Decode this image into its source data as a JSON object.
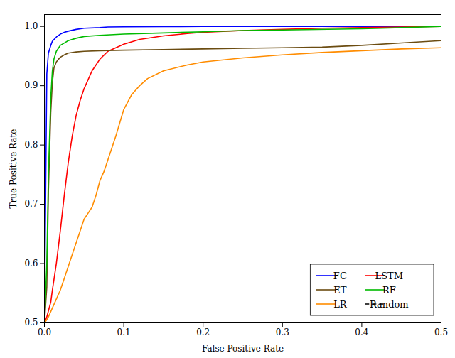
{
  "chart_data": {
    "type": "line",
    "xlabel": "False Positive Rate",
    "ylabel": "True Positive Rate",
    "xlim": [
      0.0,
      0.5
    ],
    "ylim": [
      0.5,
      1.02
    ],
    "xticks": [
      {
        "value": 0.0,
        "label": "0.0"
      },
      0.1,
      0.2,
      0.3,
      0.4,
      0.5
    ],
    "yticks": [
      0.5,
      0.6,
      0.7,
      0.8,
      0.9,
      {
        "value": 1.0,
        "label": "1.0"
      }
    ],
    "grid": false,
    "legend": "lower right",
    "series": [
      {
        "name": "FC",
        "color": "#0000ff",
        "line_style": "solid",
        "x": [
          0.0,
          0.003,
          0.005,
          0.008,
          0.01,
          0.015,
          0.02,
          0.025,
          0.03,
          0.04,
          0.05,
          0.07,
          0.08,
          0.1,
          0.15,
          0.2,
          0.5
        ],
        "values": [
          0.5,
          0.92,
          0.955,
          0.968,
          0.975,
          0.982,
          0.987,
          0.99,
          0.992,
          0.995,
          0.997,
          0.998,
          0.999,
          0.9993,
          0.9996,
          1.0,
          1.0
        ]
      },
      {
        "name": "LSTM",
        "color": "#ff0000",
        "line_style": "solid",
        "x": [
          0.0,
          0.003,
          0.005,
          0.008,
          0.01,
          0.015,
          0.02,
          0.025,
          0.03,
          0.035,
          0.04,
          0.045,
          0.05,
          0.06,
          0.07,
          0.08,
          0.1,
          0.12,
          0.15,
          0.18,
          0.2,
          0.25,
          0.3,
          0.35,
          0.4,
          0.45,
          0.5
        ],
        "values": [
          0.5,
          0.51,
          0.52,
          0.535,
          0.555,
          0.6,
          0.655,
          0.715,
          0.77,
          0.815,
          0.85,
          0.875,
          0.895,
          0.925,
          0.945,
          0.958,
          0.97,
          0.978,
          0.984,
          0.988,
          0.99,
          0.993,
          0.995,
          0.997,
          0.998,
          0.999,
          1.0
        ]
      },
      {
        "name": "ET",
        "color": "#6b4c11",
        "line_style": "solid",
        "x": [
          0.0,
          0.003,
          0.005,
          0.008,
          0.01,
          0.012,
          0.015,
          0.018,
          0.02,
          0.025,
          0.03,
          0.04,
          0.05,
          0.07,
          0.1,
          0.15,
          0.2,
          0.25,
          0.3,
          0.35,
          0.4,
          0.45,
          0.5
        ],
        "values": [
          0.5,
          0.56,
          0.72,
          0.855,
          0.905,
          0.93,
          0.94,
          0.945,
          0.948,
          0.952,
          0.955,
          0.957,
          0.958,
          0.959,
          0.96,
          0.961,
          0.962,
          0.963,
          0.964,
          0.965,
          0.968,
          0.972,
          0.976
        ]
      },
      {
        "name": "RF",
        "color": "#00bb00",
        "line_style": "solid",
        "x": [
          0.0,
          0.003,
          0.005,
          0.008,
          0.01,
          0.012,
          0.015,
          0.018,
          0.02,
          0.025,
          0.03,
          0.04,
          0.05,
          0.07,
          0.1,
          0.15,
          0.2,
          0.25,
          0.3,
          0.4,
          0.45,
          0.5
        ],
        "values": [
          0.5,
          0.6,
          0.75,
          0.88,
          0.925,
          0.945,
          0.958,
          0.964,
          0.968,
          0.972,
          0.976,
          0.98,
          0.983,
          0.985,
          0.987,
          0.989,
          0.991,
          0.993,
          0.994,
          0.996,
          0.998,
          1.0
        ]
      },
      {
        "name": "LR",
        "color": "#ff8c00",
        "line_style": "solid",
        "x": [
          0.0,
          0.003,
          0.005,
          0.01,
          0.015,
          0.02,
          0.025,
          0.03,
          0.035,
          0.04,
          0.045,
          0.05,
          0.055,
          0.06,
          0.065,
          0.07,
          0.075,
          0.08,
          0.09,
          0.1,
          0.11,
          0.12,
          0.13,
          0.15,
          0.18,
          0.2,
          0.25,
          0.3,
          0.35,
          0.4,
          0.45,
          0.5
        ],
        "values": [
          0.5,
          0.505,
          0.51,
          0.525,
          0.54,
          0.555,
          0.575,
          0.595,
          0.615,
          0.635,
          0.655,
          0.675,
          0.685,
          0.695,
          0.715,
          0.74,
          0.755,
          0.775,
          0.815,
          0.86,
          0.885,
          0.9,
          0.912,
          0.925,
          0.935,
          0.94,
          0.947,
          0.952,
          0.956,
          0.959,
          0.962,
          0.964
        ]
      },
      {
        "name": "Random",
        "color": "#000000",
        "line_style": "dashed",
        "x": [],
        "values": []
      }
    ]
  }
}
